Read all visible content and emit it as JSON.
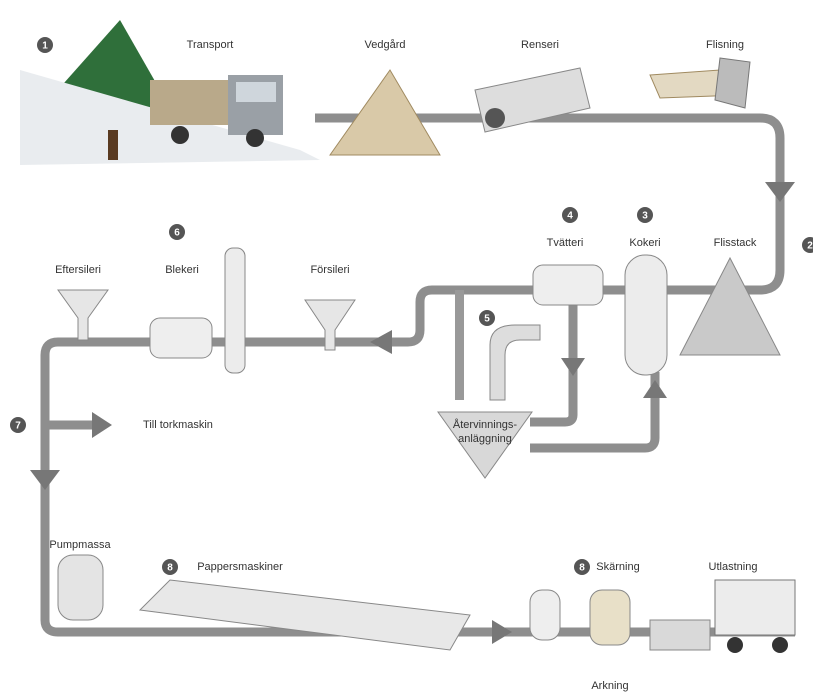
{
  "labels": [
    "Transport",
    "Vedgård",
    "Renseri",
    "Flisning",
    "Flisstack",
    "Kokeri",
    "Tvätteri",
    "Försileri",
    "Blekeri",
    "Eftersileri",
    "Till torkmaskin",
    "Återvinnings-",
    "anläggning",
    "Pumpmassa",
    "Pappersmaskiner",
    "Skärning",
    "Utlastning",
    "Arkning"
  ],
  "steps": [
    "1",
    "2",
    "3",
    "4",
    "5",
    "6",
    "7",
    "8",
    "8"
  ]
}
